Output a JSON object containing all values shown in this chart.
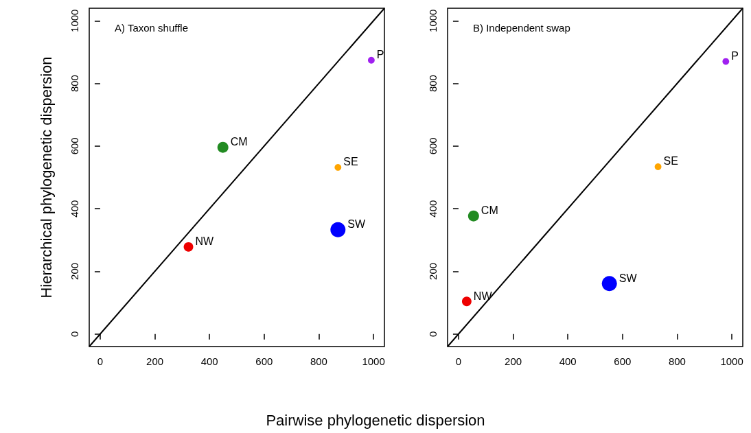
{
  "chart_data": [
    {
      "type": "bubble",
      "title": "A) Taxon shuffle",
      "xlabel": "Pairwise phylogenetic dispersion",
      "ylabel": "Hierarchical phylogenetic dispersion",
      "xlim": [
        -40,
        1040
      ],
      "ylim": [
        -40,
        1040
      ],
      "xticks": [
        0,
        200,
        400,
        600,
        800,
        1000
      ],
      "yticks": [
        0,
        200,
        400,
        600,
        800,
        1000
      ],
      "grid": false,
      "legend": false,
      "marker": "circle",
      "series": [
        {
          "type": "line",
          "color": "#000000",
          "x": [
            -40,
            1040
          ],
          "values": [
            -40,
            1040
          ],
          "line_style": "solid",
          "marker": "none"
        },
        {
          "name": "NW",
          "color": "#ee0000",
          "x": [
            323
          ],
          "values": [
            278
          ],
          "sizes": [
            0.4
          ]
        },
        {
          "name": "CM",
          "color": "#228b22",
          "x": [
            449
          ],
          "values": [
            596
          ],
          "sizes": [
            0.53
          ]
        },
        {
          "name": "SW",
          "color": "#0000ff",
          "x": [
            870
          ],
          "values": [
            333
          ],
          "sizes": [
            1
          ]
        },
        {
          "name": "SE",
          "color": "#ffa500",
          "x": [
            870
          ],
          "values": [
            532
          ],
          "sizes": [
            0.2
          ]
        },
        {
          "name": "P",
          "color": "#a020f0",
          "x": [
            992
          ],
          "values": [
            874
          ],
          "sizes": [
            0.2
          ]
        }
      ]
    },
    {
      "type": "bubble",
      "title": "B) Independent swap",
      "xlim": [
        -40,
        1040
      ],
      "ylim": [
        -40,
        1040
      ],
      "xticks": [
        0,
        200,
        400,
        600,
        800,
        1000
      ],
      "yticks": [
        0,
        200,
        400,
        600,
        800,
        1000
      ],
      "grid": false,
      "legend": false,
      "marker": "circle",
      "series": [
        {
          "type": "line",
          "color": "#000000",
          "x": [
            -40,
            1040
          ],
          "values": [
            -40,
            1040
          ],
          "line_style": "solid",
          "marker": "none"
        },
        {
          "name": "NW",
          "color": "#ee0000",
          "x": [
            30
          ],
          "values": [
            104
          ],
          "sizes": [
            0.4
          ]
        },
        {
          "name": "CM",
          "color": "#228b22",
          "x": [
            55
          ],
          "values": [
            377
          ],
          "sizes": [
            0.53
          ]
        },
        {
          "name": "SW",
          "color": "#0000ff",
          "x": [
            552
          ],
          "values": [
            161
          ],
          "sizes": [
            1
          ]
        },
        {
          "name": "SE",
          "color": "#ffa500",
          "x": [
            730
          ],
          "values": [
            534
          ],
          "sizes": [
            0.2
          ]
        },
        {
          "name": "P",
          "color": "#a020f0",
          "x": [
            978
          ],
          "values": [
            870
          ],
          "sizes": [
            0.2
          ]
        }
      ]
    }
  ]
}
